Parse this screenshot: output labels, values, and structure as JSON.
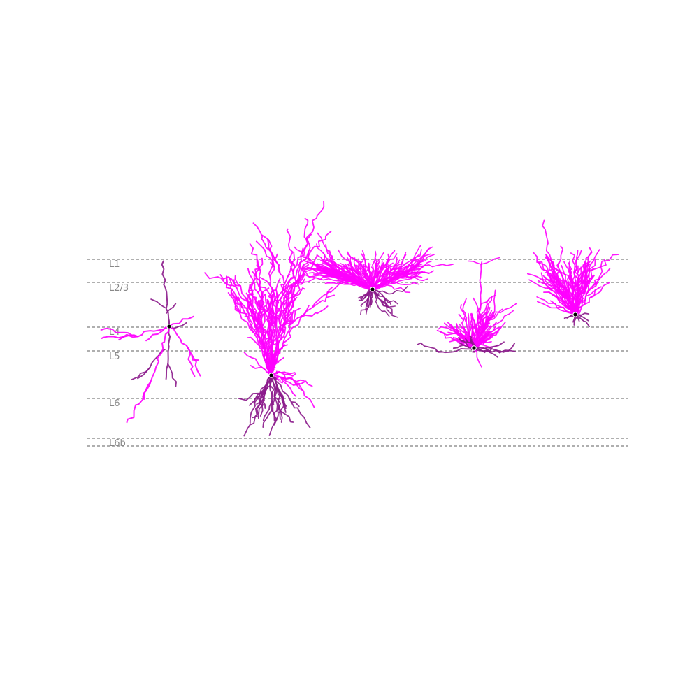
{
  "figure": {
    "layers": [
      {
        "id": "L1",
        "label": "L1"
      },
      {
        "id": "L2-3",
        "label": "L2/3"
      },
      {
        "id": "L4",
        "label": "L4"
      },
      {
        "id": "L5",
        "label": "L5"
      },
      {
        "id": "L6",
        "label": "L6"
      },
      {
        "id": "L6b",
        "label": "L6b"
      }
    ],
    "colors": {
      "apical_dendrite": "#ff00ff",
      "basal_dendrite": "#8b1a8b",
      "soma_fill": "#000000",
      "soma_outline": "#ffffff",
      "boundary_line": "#7f7f7f",
      "label_text": "#888888"
    },
    "neurons": [
      {
        "id": "neuron-1",
        "type": "sparse pyramidal",
        "soma_layer": "L4"
      },
      {
        "id": "neuron-2",
        "type": "dense pyramidal",
        "soma_layer": "L5"
      },
      {
        "id": "neuron-3",
        "type": "tufted",
        "soma_layer": "L2/3"
      },
      {
        "id": "neuron-4",
        "type": "star",
        "soma_layer": "L4"
      },
      {
        "id": "neuron-5",
        "type": "fan",
        "soma_layer": "L2/3"
      }
    ]
  }
}
